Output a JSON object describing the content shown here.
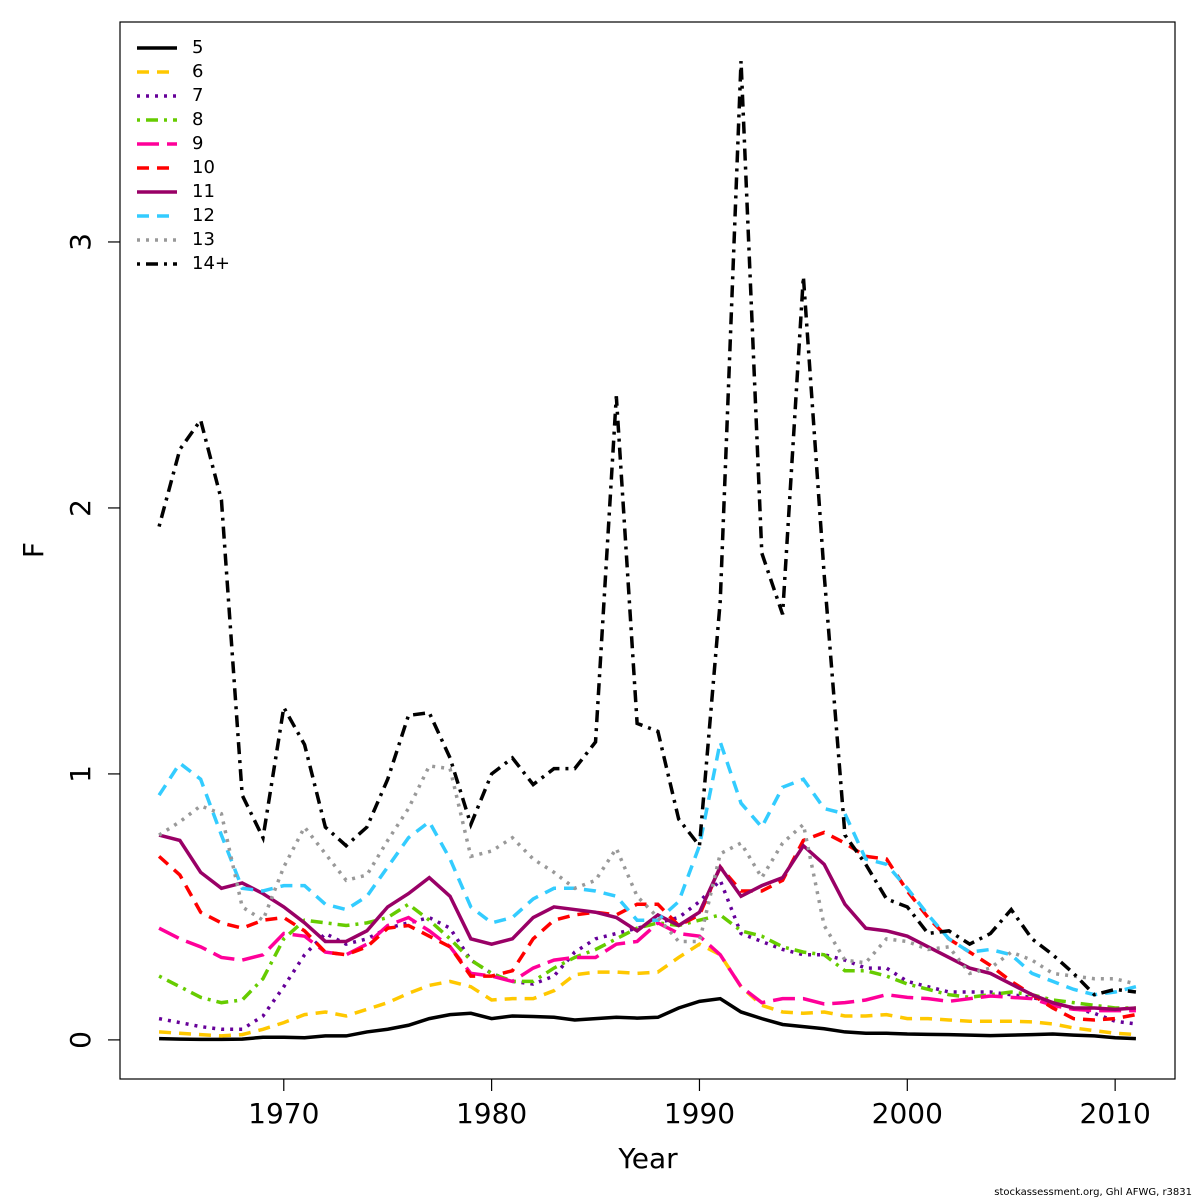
{
  "chart_data": {
    "type": "line",
    "xlabel": "Year",
    "ylabel": "F",
    "footer": "stockassessment.org, Ghl AFWG, r3831",
    "x": [
      1964,
      1965,
      1966,
      1967,
      1968,
      1969,
      1970,
      1971,
      1972,
      1973,
      1974,
      1975,
      1976,
      1977,
      1978,
      1979,
      1980,
      1981,
      1982,
      1983,
      1984,
      1985,
      1986,
      1987,
      1988,
      1989,
      1990,
      1991,
      1992,
      1993,
      1994,
      1995,
      1996,
      1997,
      1998,
      1999,
      2000,
      2001,
      2002,
      2003,
      2004,
      2005,
      2006,
      2007,
      2008,
      2009,
      2010,
      2011
    ],
    "xlim": [
      1962.12,
      2012.88
    ],
    "xticks": [
      1970,
      1980,
      1990,
      2000,
      2010
    ],
    "ylim": [
      -0.147,
      3.827
    ],
    "yticks": [
      0,
      1,
      2,
      3
    ],
    "legend": "top-left",
    "series": [
      {
        "name": "5",
        "color": "#000000",
        "dash": "solid",
        "values": [
          0.005,
          0.003,
          0.002,
          0.002,
          0.003,
          0.01,
          0.01,
          0.008,
          0.015,
          0.015,
          0.03,
          0.04,
          0.055,
          0.08,
          0.095,
          0.1,
          0.08,
          0.09,
          0.088,
          0.085,
          0.075,
          0.08,
          0.085,
          0.082,
          0.085,
          0.12,
          0.145,
          0.155,
          0.105,
          0.08,
          0.058,
          0.05,
          0.042,
          0.03,
          0.025,
          0.025,
          0.022,
          0.021,
          0.02,
          0.018,
          0.016,
          0.018,
          0.02,
          0.022,
          0.018,
          0.015,
          0.008,
          0.005
        ]
      },
      {
        "name": "6",
        "color": "#FFC800",
        "dash": "dashed",
        "values": [
          0.03,
          0.025,
          0.02,
          0.015,
          0.02,
          0.04,
          0.065,
          0.095,
          0.105,
          0.09,
          0.115,
          0.14,
          0.175,
          0.205,
          0.22,
          0.2,
          0.15,
          0.155,
          0.155,
          0.185,
          0.245,
          0.255,
          0.255,
          0.25,
          0.255,
          0.31,
          0.36,
          0.32,
          0.2,
          0.13,
          0.105,
          0.1,
          0.105,
          0.09,
          0.09,
          0.095,
          0.08,
          0.08,
          0.075,
          0.07,
          0.07,
          0.07,
          0.068,
          0.06,
          0.045,
          0.035,
          0.025,
          0.02
        ]
      },
      {
        "name": "7",
        "color": "#660099",
        "dash": "dotted",
        "values": [
          0.08,
          0.065,
          0.05,
          0.04,
          0.04,
          0.09,
          0.2,
          0.32,
          0.4,
          0.36,
          0.38,
          0.42,
          0.44,
          0.46,
          0.42,
          0.3,
          0.25,
          0.22,
          0.21,
          0.24,
          0.33,
          0.38,
          0.4,
          0.42,
          0.44,
          0.46,
          0.52,
          0.6,
          0.4,
          0.37,
          0.34,
          0.32,
          0.32,
          0.3,
          0.27,
          0.27,
          0.22,
          0.2,
          0.18,
          0.18,
          0.18,
          0.17,
          0.16,
          0.14,
          0.12,
          0.1,
          0.07,
          0.06
        ]
      },
      {
        "name": "8",
        "color": "#66CC00",
        "dash": "dotdash",
        "values": [
          0.24,
          0.2,
          0.16,
          0.14,
          0.15,
          0.23,
          0.38,
          0.45,
          0.44,
          0.43,
          0.44,
          0.46,
          0.51,
          0.45,
          0.38,
          0.3,
          0.25,
          0.22,
          0.22,
          0.27,
          0.31,
          0.34,
          0.38,
          0.42,
          0.44,
          0.43,
          0.45,
          0.47,
          0.41,
          0.39,
          0.35,
          0.33,
          0.32,
          0.26,
          0.26,
          0.24,
          0.21,
          0.19,
          0.17,
          0.16,
          0.17,
          0.18,
          0.17,
          0.15,
          0.14,
          0.13,
          0.12,
          0.12
        ]
      },
      {
        "name": "9",
        "color": "#FF0099",
        "dash": "longdash",
        "values": [
          0.42,
          0.38,
          0.35,
          0.31,
          0.3,
          0.32,
          0.4,
          0.39,
          0.33,
          0.32,
          0.36,
          0.43,
          0.46,
          0.41,
          0.35,
          0.25,
          0.24,
          0.22,
          0.27,
          0.3,
          0.31,
          0.31,
          0.36,
          0.37,
          0.44,
          0.4,
          0.39,
          0.32,
          0.2,
          0.14,
          0.155,
          0.155,
          0.135,
          0.14,
          0.15,
          0.17,
          0.16,
          0.155,
          0.145,
          0.155,
          0.165,
          0.16,
          0.155,
          0.13,
          0.115,
          0.11,
          0.11,
          0.11
        ]
      },
      {
        "name": "10",
        "color": "#FF0000",
        "dash": "dashed",
        "values": [
          0.69,
          0.62,
          0.48,
          0.44,
          0.42,
          0.45,
          0.46,
          0.41,
          0.33,
          0.32,
          0.35,
          0.42,
          0.43,
          0.39,
          0.35,
          0.24,
          0.24,
          0.26,
          0.38,
          0.45,
          0.47,
          0.48,
          0.47,
          0.51,
          0.51,
          0.43,
          0.47,
          0.65,
          0.56,
          0.56,
          0.6,
          0.75,
          0.78,
          0.74,
          0.69,
          0.68,
          0.56,
          0.46,
          0.38,
          0.33,
          0.28,
          0.22,
          0.17,
          0.12,
          0.08,
          0.075,
          0.08,
          0.095
        ]
      },
      {
        "name": "11",
        "color": "#990066",
        "dash": "solid",
        "values": [
          0.77,
          0.75,
          0.63,
          0.57,
          0.59,
          0.55,
          0.5,
          0.44,
          0.37,
          0.37,
          0.41,
          0.5,
          0.55,
          0.61,
          0.54,
          0.38,
          0.36,
          0.38,
          0.46,
          0.5,
          0.49,
          0.48,
          0.46,
          0.41,
          0.47,
          0.43,
          0.48,
          0.65,
          0.54,
          0.58,
          0.61,
          0.73,
          0.66,
          0.51,
          0.42,
          0.41,
          0.39,
          0.35,
          0.31,
          0.27,
          0.25,
          0.21,
          0.17,
          0.14,
          0.12,
          0.12,
          0.115,
          0.12
        ]
      },
      {
        "name": "12",
        "color": "#33CCFF",
        "dash": "dashed",
        "values": [
          0.92,
          1.04,
          0.98,
          0.77,
          0.57,
          0.56,
          0.58,
          0.58,
          0.51,
          0.49,
          0.54,
          0.65,
          0.76,
          0.82,
          0.68,
          0.5,
          0.44,
          0.46,
          0.53,
          0.57,
          0.57,
          0.56,
          0.54,
          0.45,
          0.45,
          0.52,
          0.73,
          1.12,
          0.89,
          0.8,
          0.95,
          0.98,
          0.87,
          0.85,
          0.68,
          0.66,
          0.57,
          0.47,
          0.38,
          0.33,
          0.34,
          0.32,
          0.25,
          0.22,
          0.19,
          0.17,
          0.18,
          0.2
        ]
      },
      {
        "name": "13",
        "color": "#999999",
        "dash": "dotted",
        "values": [
          0.77,
          0.82,
          0.88,
          0.85,
          0.5,
          0.45,
          0.65,
          0.8,
          0.7,
          0.6,
          0.62,
          0.75,
          0.87,
          1.03,
          1.02,
          0.69,
          0.71,
          0.76,
          0.68,
          0.63,
          0.57,
          0.6,
          0.72,
          0.54,
          0.46,
          0.37,
          0.37,
          0.7,
          0.74,
          0.61,
          0.74,
          0.81,
          0.43,
          0.3,
          0.29,
          0.38,
          0.37,
          0.34,
          0.35,
          0.25,
          0.27,
          0.33,
          0.3,
          0.25,
          0.24,
          0.23,
          0.23,
          0.21
        ]
      },
      {
        "name": "14+",
        "color": "#000000",
        "dash": "dotdash",
        "values": [
          1.93,
          2.22,
          2.33,
          2.03,
          0.92,
          0.76,
          1.25,
          1.11,
          0.8,
          0.73,
          0.8,
          0.98,
          1.22,
          1.23,
          1.06,
          0.81,
          1.0,
          1.06,
          0.96,
          1.02,
          1.02,
          1.12,
          2.42,
          1.19,
          1.16,
          0.83,
          0.73,
          1.65,
          3.68,
          1.83,
          1.6,
          2.87,
          1.75,
          0.77,
          0.66,
          0.53,
          0.5,
          0.4,
          0.41,
          0.36,
          0.4,
          0.49,
          0.38,
          0.32,
          0.25,
          0.17,
          0.19,
          0.18
        ]
      }
    ]
  }
}
